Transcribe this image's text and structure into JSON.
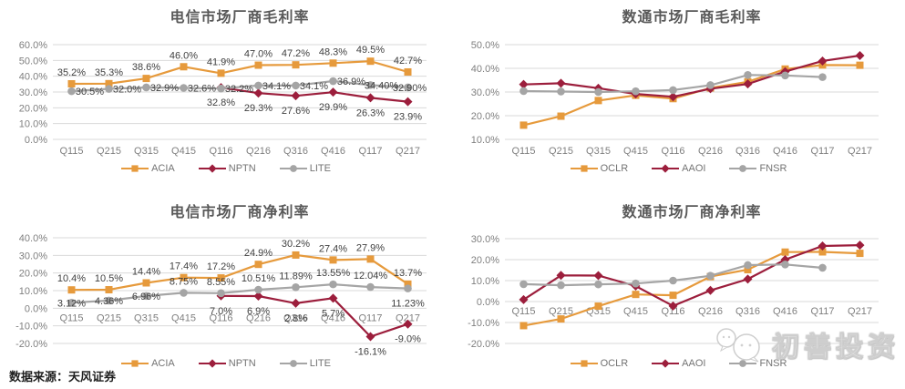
{
  "page": {
    "source_note": "数据来源：天风证券",
    "watermark_text": "初善投资",
    "background": "#ffffff"
  },
  "colors": {
    "orange": "#E69A3C",
    "dark_red": "#9C1E3C",
    "gray": "#A5A5A5",
    "grid": "#D9D9D9",
    "axis_text": "#7F7F7F",
    "label_text": "#3F3F3F",
    "title_text": "#595959"
  },
  "chart_data": [
    {
      "type": "line",
      "title": "电信市场厂商毛利率",
      "categories": [
        "Q115",
        "Q215",
        "Q315",
        "Q415",
        "Q116",
        "Q216",
        "Q316",
        "Q416",
        "Q117",
        "Q217"
      ],
      "ylim": [
        0,
        60
      ],
      "ystep": 10,
      "grid": true,
      "legend_position": "bottom",
      "series": [
        {
          "name": "ACIA",
          "color": "orange",
          "marker": "square",
          "label_side": "a",
          "values": [
            35.2,
            35.3,
            38.6,
            46.0,
            41.9,
            47.0,
            47.2,
            48.3,
            49.5,
            42.7
          ],
          "labels": [
            "35.2%",
            "35.3%",
            "38.6%",
            "46.0%",
            "41.9%",
            "47.0%",
            "47.2%",
            "48.3%",
            "49.5%",
            "42.7%"
          ]
        },
        {
          "name": "NPTN",
          "color": "dark_red",
          "marker": "diamond",
          "label_side": "b",
          "values": [
            null,
            null,
            null,
            null,
            32.8,
            29.3,
            27.6,
            29.9,
            26.3,
            23.9
          ],
          "labels": [
            null,
            null,
            null,
            null,
            "32.8%",
            "29.3%",
            "27.6%",
            "29.9%",
            "26.3%",
            "23.9%"
          ]
        },
        {
          "name": "LITE",
          "color": "gray",
          "marker": "circle",
          "label_side": "m",
          "label_dx": 20,
          "label_dx_overrides": {
            "8": 12,
            "9": 2
          },
          "values": [
            30.5,
            32.0,
            32.9,
            32.6,
            32.2,
            34.1,
            34.1,
            36.9,
            34.4,
            32.9
          ],
          "labels": [
            "30.5%",
            "32.0%",
            "32.9%",
            "32.6%",
            "32.2%",
            "34.1%",
            "34.1%",
            "36.9%",
            "34.40%",
            "32.90%"
          ]
        }
      ]
    },
    {
      "type": "line",
      "title": "数通市场厂商毛利率",
      "categories": [
        "Q115",
        "Q215",
        "Q315",
        "Q415",
        "Q116",
        "Q216",
        "Q316",
        "Q416",
        "Q117",
        "Q217"
      ],
      "ylim": [
        10,
        50
      ],
      "ystep": 10,
      "grid": true,
      "legend_position": "bottom",
      "series": [
        {
          "name": "OCLR",
          "color": "orange",
          "marker": "square",
          "values": [
            16.0,
            19.8,
            26.4,
            28.6,
            27.2,
            31.7,
            34.3,
            39.7,
            41.4,
            41.3
          ]
        },
        {
          "name": "AAOI",
          "color": "dark_red",
          "marker": "diamond",
          "values": [
            33.2,
            33.7,
            31.6,
            29.2,
            28.0,
            31.4,
            33.4,
            38.6,
            43.1,
            45.4
          ]
        },
        {
          "name": "FNSR",
          "color": "gray",
          "marker": "circle",
          "values": [
            30.4,
            30.2,
            30.0,
            30.3,
            30.8,
            32.9,
            37.2,
            37.0,
            36.3,
            null
          ]
        }
      ]
    },
    {
      "type": "line",
      "title": "电信市场厂商净利率",
      "categories": [
        "Q115",
        "Q215",
        "Q315",
        "Q415",
        "Q116",
        "Q216",
        "Q316",
        "Q416",
        "Q117",
        "Q217"
      ],
      "ylim": [
        -20,
        40
      ],
      "ystep": 10,
      "grid": true,
      "legend_position": "bottom",
      "series": [
        {
          "name": "ACIA",
          "color": "orange",
          "marker": "square",
          "label_side": "a",
          "values": [
            10.4,
            10.5,
            14.4,
            17.4,
            17.2,
            24.9,
            30.2,
            27.4,
            27.9,
            13.7
          ],
          "labels": [
            "10.4%",
            "10.5%",
            "14.4%",
            "17.4%",
            "17.2%",
            "24.9%",
            "30.2%",
            "27.4%",
            "27.9%",
            "13.7%"
          ]
        },
        {
          "name": "NPTN",
          "color": "dark_red",
          "marker": "diamond",
          "label_side": "b",
          "values": [
            null,
            null,
            null,
            null,
            7.0,
            6.9,
            2.8,
            5.7,
            -16.1,
            -9.0
          ],
          "labels": [
            null,
            null,
            null,
            null,
            "7.0%",
            "6.9%",
            "2.8%",
            "5.7%",
            "-16.1%",
            "-9.0%"
          ]
        },
        {
          "name": "LITE",
          "color": "gray",
          "marker": "circle",
          "label_side": "a",
          "label_side_overrides": {
            "0": "m",
            "1": "m",
            "2": "m",
            "9": "b"
          },
          "values": [
            3.12,
            4.36,
            6.96,
            8.75,
            8.55,
            10.51,
            11.89,
            13.55,
            12.04,
            11.23
          ],
          "labels": [
            "3.12%",
            "4.36%",
            "6.96%",
            "8.75%",
            "8.55%",
            "10.51%",
            "11.89%",
            "13.55%",
            "12.04%",
            "11.23%"
          ]
        }
      ]
    },
    {
      "type": "line",
      "title": "数通市场厂商净利率",
      "categories": [
        "Q115",
        "Q215",
        "Q315",
        "Q415",
        "Q116",
        "Q216",
        "Q316",
        "Q416",
        "Q117",
        "Q217"
      ],
      "ylim": [
        -20,
        30
      ],
      "ystep": 10,
      "grid": true,
      "legend_position": "bottom",
      "series": [
        {
          "name": "OCLR",
          "color": "orange",
          "marker": "square",
          "values": [
            -11.5,
            -8.3,
            -2.2,
            3.4,
            3.0,
            11.9,
            15.2,
            23.6,
            23.7,
            23.0
          ]
        },
        {
          "name": "AAOI",
          "color": "dark_red",
          "marker": "diamond",
          "values": [
            0.9,
            12.5,
            12.4,
            7.4,
            -2.1,
            5.3,
            10.7,
            20.0,
            26.5,
            26.9
          ]
        },
        {
          "name": "FNSR",
          "color": "gray",
          "marker": "circle",
          "values": [
            8.3,
            7.8,
            8.2,
            8.6,
            10.0,
            12.3,
            17.4,
            17.7,
            16.1,
            null
          ]
        }
      ]
    }
  ]
}
